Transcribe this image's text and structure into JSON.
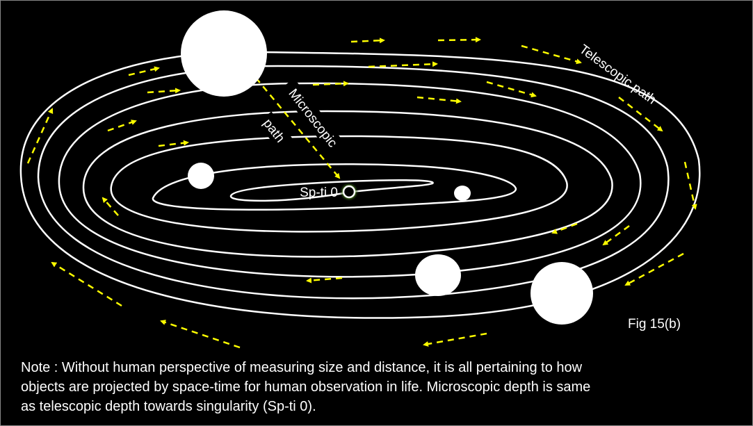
{
  "figure": {
    "labels": {
      "telescopic": "Telescopic  path",
      "microscopic": "Microscopic",
      "microscopic_path": "path",
      "center": "Sp-ti 0",
      "fig": "Fig 15(b)"
    },
    "note": [
      "Note : Without human perspective of measuring size and distance, it is all pertaining to how",
      "objects are projected by space-time for human observation in life. Microscopic depth is same",
      "as telescopic depth towards singularity  (Sp-ti 0)."
    ]
  }
}
